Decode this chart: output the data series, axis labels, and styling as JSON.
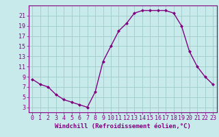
{
  "x": [
    0,
    1,
    2,
    3,
    4,
    5,
    6,
    7,
    8,
    9,
    10,
    11,
    12,
    13,
    14,
    15,
    16,
    17,
    18,
    19,
    20,
    21,
    22,
    23
  ],
  "y": [
    8.5,
    7.5,
    7,
    5.5,
    4.5,
    4,
    3.5,
    3,
    6,
    12,
    15,
    18,
    19.5,
    21.5,
    22,
    22,
    22,
    22,
    21.5,
    19,
    14,
    11,
    9,
    7.5
  ],
  "line_color": "#800080",
  "marker_color": "#800080",
  "bg_color": "#c8eaea",
  "grid_color": "#a0cccc",
  "xlabel": "Windchill (Refroidissement éolien,°C)",
  "xlim": [
    -0.5,
    23.5
  ],
  "ylim": [
    2,
    23
  ],
  "xticks": [
    0,
    1,
    2,
    3,
    4,
    5,
    6,
    7,
    8,
    9,
    10,
    11,
    12,
    13,
    14,
    15,
    16,
    17,
    18,
    19,
    20,
    21,
    22,
    23
  ],
  "yticks": [
    3,
    5,
    7,
    9,
    11,
    13,
    15,
    17,
    19,
    21
  ],
  "xlabel_fontsize": 6.5,
  "tick_fontsize": 6,
  "axes_color": "#800080",
  "spine_color": "#800080",
  "fig_width": 3.2,
  "fig_height": 2.0,
  "fig_dpi": 100
}
